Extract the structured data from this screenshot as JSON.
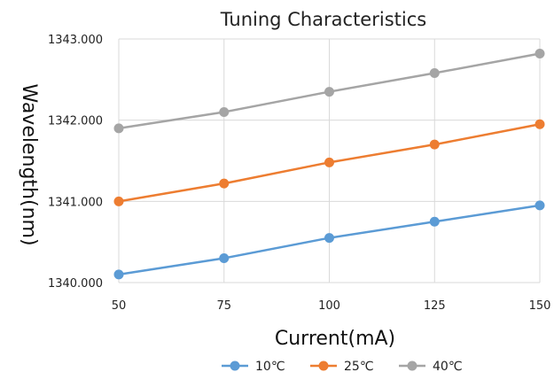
{
  "chart_data": {
    "type": "line",
    "title": "Tuning Characteristics",
    "xlabel": "Current(mA)",
    "ylabel": "Wavelength(nm)",
    "x": [
      50,
      75,
      100,
      125,
      150
    ],
    "x_tick_labels": [
      "50",
      "75",
      "100",
      "125",
      "150"
    ],
    "ylim": [
      1340,
      1343
    ],
    "y_tick_labels": [
      "1340.000",
      "1341.000",
      "1342.000",
      "1343.000"
    ],
    "y_ticks": [
      1340,
      1341,
      1342,
      1343
    ],
    "grid": true,
    "legend_position": "bottom",
    "series": [
      {
        "name": "10℃",
        "color": "#5B9BD5",
        "values": [
          1340.1,
          1340.3,
          1340.55,
          1340.75,
          1340.95
        ]
      },
      {
        "name": "25℃",
        "color": "#ED7D31",
        "values": [
          1341.0,
          1341.22,
          1341.48,
          1341.7,
          1341.95
        ]
      },
      {
        "name": "40℃",
        "color": "#A5A5A5",
        "values": [
          1341.9,
          1342.1,
          1342.35,
          1342.58,
          1342.82
        ]
      }
    ]
  }
}
